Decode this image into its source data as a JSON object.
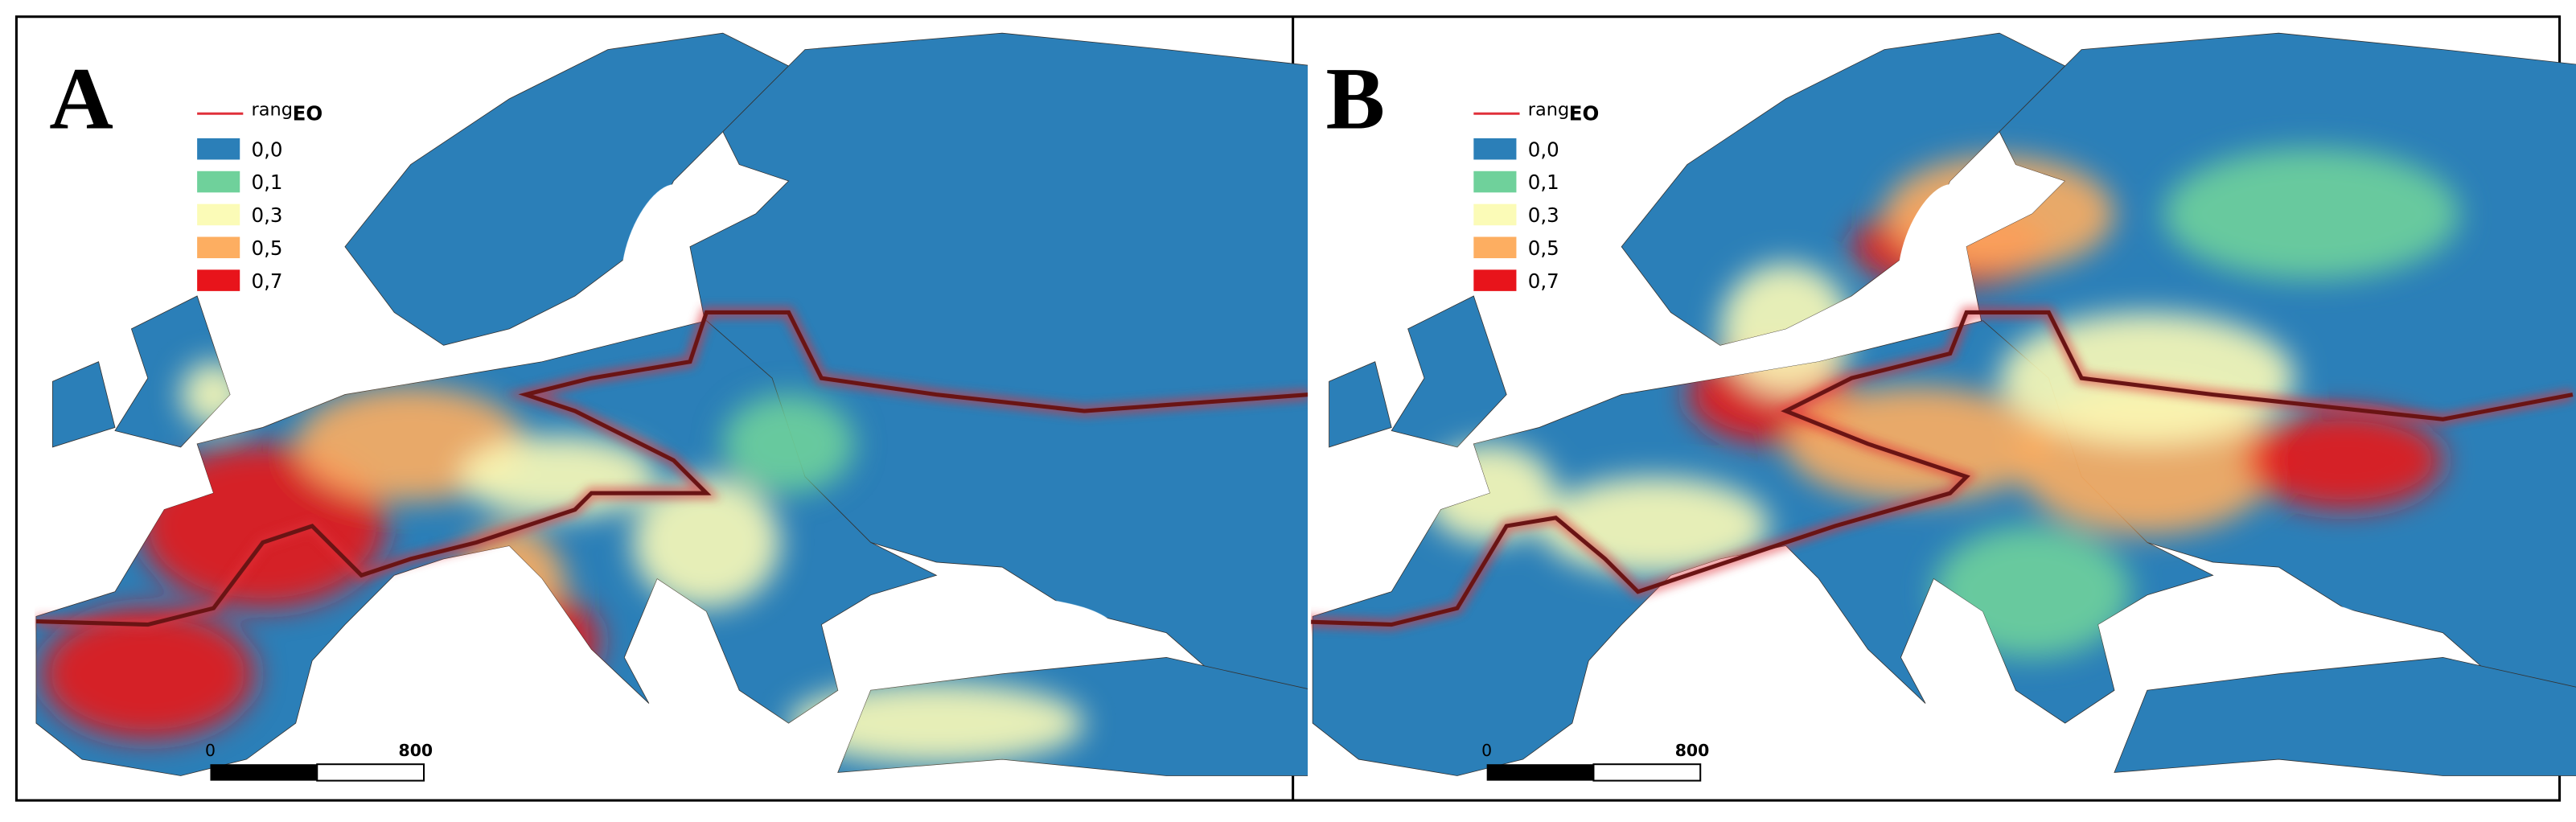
{
  "panels": [
    {
      "label": "A",
      "legend": {
        "line": {
          "text": "rang",
          "subscript": "EO",
          "color": "#e0303a"
        },
        "items": [
          {
            "label": "0,0",
            "color": "#2b7fb8"
          },
          {
            "label": "0,1",
            "color": "#6fd19b"
          },
          {
            "label": "0,3",
            "color": "#fbfbb7"
          },
          {
            "label": "0,5",
            "color": "#fdae61"
          },
          {
            "label": "0,7",
            "color": "#e8141b"
          }
        ]
      },
      "scale_bar": {
        "start": "0",
        "end": "800"
      }
    },
    {
      "label": "B",
      "legend": {
        "line": {
          "text": "rang",
          "subscript": "EO",
          "color": "#e0303a"
        },
        "items": [
          {
            "label": "0,0",
            "color": "#2b7fb8"
          },
          {
            "label": "0,1",
            "color": "#6fd19b"
          },
          {
            "label": "0,3",
            "color": "#fbfbb7"
          },
          {
            "label": "0,5",
            "color": "#fdae61"
          },
          {
            "label": "0,7",
            "color": "#e8141b"
          }
        ]
      },
      "scale_bar": {
        "start": "0",
        "end": "800"
      }
    }
  ]
}
